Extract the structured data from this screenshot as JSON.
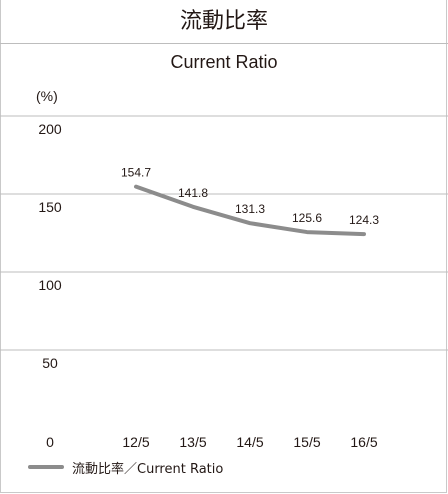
{
  "chart_data": {
    "type": "line",
    "title": "流動比率",
    "subtitle": "Current Ratio",
    "ylabel": "(%)",
    "categories": [
      "12/5",
      "13/5",
      "14/5",
      "15/5",
      "16/5"
    ],
    "series": [
      {
        "name": "流動比率／Current Ratio",
        "values": [
          154.7,
          141.8,
          131.3,
          125.6,
          124.3
        ],
        "color": "#8c8c8c"
      }
    ],
    "yticks": [
      0,
      50,
      100,
      150,
      200
    ],
    "ylim": [
      0,
      200
    ],
    "grid": true,
    "legend_position": "bottom-left"
  },
  "colors": {
    "line": "#8c8c8c",
    "grid": "#bdbdbd",
    "text": "#231815"
  }
}
